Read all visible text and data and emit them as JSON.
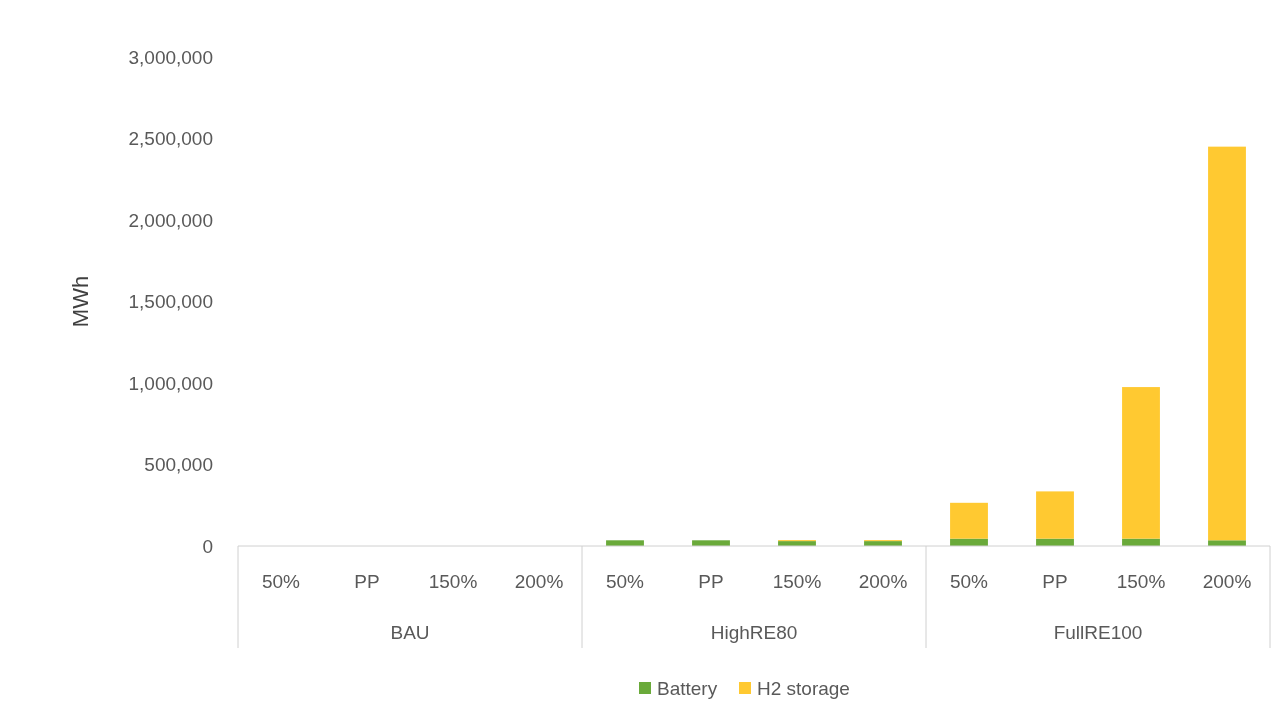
{
  "chart_data": {
    "type": "bar",
    "ylabel": "MWh",
    "stacked": true,
    "legend": "bottom",
    "grid": false,
    "categories": [
      "50%",
      "PP",
      "150%",
      "200%",
      "50%",
      "PP",
      "150%",
      "200%",
      "50%",
      "PP",
      "150%",
      "200%"
    ],
    "annotations": [
      "BAU",
      "HighRE80",
      "FullRE100"
    ],
    "series": [
      {
        "name": "Battery",
        "color": "#6aaa3a",
        "values": [
          0,
          0,
          0,
          0,
          35000,
          35000,
          30000,
          30000,
          45000,
          45000,
          45000,
          35000
        ]
      },
      {
        "name": "H2 storage",
        "color": "#ffc931",
        "values": [
          0,
          0,
          0,
          0,
          0,
          0,
          6000,
          6000,
          220000,
          290000,
          930000,
          2415000
        ]
      }
    ],
    "ylim": [
      0,
      3000000
    ],
    "yticks": [
      {
        "value": 0,
        "label": "0"
      },
      {
        "value": 500000,
        "label": "500,000"
      },
      {
        "value": 1000000,
        "label": "1,000,000"
      },
      {
        "value": 1500000,
        "label": "1,500,000"
      },
      {
        "value": 2000000,
        "label": "2,000,000"
      },
      {
        "value": 2500000,
        "label": "2,500,000"
      },
      {
        "value": 3000000,
        "label": "3,000,000"
      }
    ]
  }
}
